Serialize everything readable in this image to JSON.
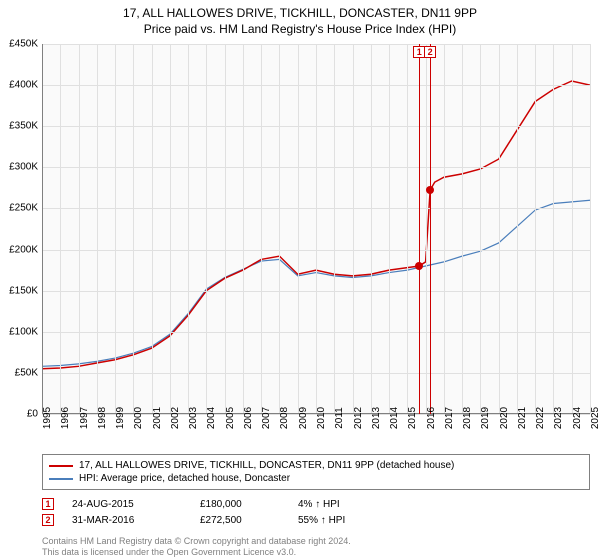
{
  "title": {
    "line1": "17, ALL HALLOWES DRIVE, TICKHILL, DONCASTER, DN11 9PP",
    "line2": "Price paid vs. HM Land Registry's House Price Index (HPI)"
  },
  "chart": {
    "type": "line",
    "background_color": "#fafafa",
    "grid_color": "#e0e0e0",
    "axis_color": "#808080",
    "title_fontsize": 12,
    "tick_fontsize": 10,
    "ylim": [
      0,
      450000
    ],
    "ytick_step": 50000,
    "yticks": [
      "£0",
      "£50K",
      "£100K",
      "£150K",
      "£200K",
      "£250K",
      "£300K",
      "£350K",
      "£400K",
      "£450K"
    ],
    "xlim": [
      1995,
      2025
    ],
    "xticks": [
      "1995",
      "1996",
      "1997",
      "1998",
      "1999",
      "2000",
      "2001",
      "2002",
      "2003",
      "2004",
      "2005",
      "2006",
      "2007",
      "2008",
      "2009",
      "2010",
      "2011",
      "2012",
      "2013",
      "2014",
      "2015",
      "2016",
      "2017",
      "2018",
      "2019",
      "2020",
      "2021",
      "2022",
      "2023",
      "2024",
      "2025"
    ],
    "series": [
      {
        "name": "property",
        "label": "17, ALL HALLOWES DRIVE, TICKHILL, DONCASTER, DN11 9PP (detached house)",
        "color": "#cc0000",
        "line_width": 1.5,
        "data": [
          [
            1995,
            55000
          ],
          [
            1996,
            56000
          ],
          [
            1997,
            58000
          ],
          [
            1998,
            62000
          ],
          [
            1999,
            66000
          ],
          [
            2000,
            72000
          ],
          [
            2001,
            80000
          ],
          [
            2002,
            95000
          ],
          [
            2003,
            120000
          ],
          [
            2004,
            150000
          ],
          [
            2005,
            165000
          ],
          [
            2006,
            175000
          ],
          [
            2007,
            188000
          ],
          [
            2008,
            192000
          ],
          [
            2009,
            170000
          ],
          [
            2010,
            175000
          ],
          [
            2011,
            170000
          ],
          [
            2012,
            168000
          ],
          [
            2013,
            170000
          ],
          [
            2014,
            175000
          ],
          [
            2015,
            178000
          ],
          [
            2015.65,
            180000
          ],
          [
            2016.0,
            185000
          ],
          [
            2016.25,
            272500
          ],
          [
            2016.5,
            282000
          ],
          [
            2017,
            288000
          ],
          [
            2018,
            292000
          ],
          [
            2019,
            298000
          ],
          [
            2020,
            310000
          ],
          [
            2021,
            345000
          ],
          [
            2022,
            380000
          ],
          [
            2023,
            395000
          ],
          [
            2024,
            405000
          ],
          [
            2025,
            400000
          ]
        ]
      },
      {
        "name": "hpi",
        "label": "HPI: Average price, detached house, Doncaster",
        "color": "#4a7ebb",
        "line_width": 1.2,
        "data": [
          [
            1995,
            58000
          ],
          [
            1996,
            59000
          ],
          [
            1997,
            61000
          ],
          [
            1998,
            64000
          ],
          [
            1999,
            68000
          ],
          [
            2000,
            74000
          ],
          [
            2001,
            82000
          ],
          [
            2002,
            97000
          ],
          [
            2003,
            122000
          ],
          [
            2004,
            152000
          ],
          [
            2005,
            166000
          ],
          [
            2006,
            176000
          ],
          [
            2007,
            186000
          ],
          [
            2008,
            188000
          ],
          [
            2009,
            168000
          ],
          [
            2010,
            172000
          ],
          [
            2011,
            168000
          ],
          [
            2012,
            166000
          ],
          [
            2013,
            168000
          ],
          [
            2014,
            172000
          ],
          [
            2015,
            175000
          ],
          [
            2016,
            180000
          ],
          [
            2017,
            185000
          ],
          [
            2018,
            192000
          ],
          [
            2019,
            198000
          ],
          [
            2020,
            208000
          ],
          [
            2021,
            228000
          ],
          [
            2022,
            248000
          ],
          [
            2023,
            256000
          ],
          [
            2024,
            258000
          ],
          [
            2025,
            260000
          ]
        ]
      }
    ],
    "markers": [
      {
        "n": "1",
        "x": 2015.65,
        "y": 180000,
        "color": "#cc0000"
      },
      {
        "n": "2",
        "x": 2016.25,
        "y": 272500,
        "color": "#cc0000"
      }
    ],
    "marker_vlines": [
      {
        "x": 2015.65,
        "color": "#cc0000"
      },
      {
        "x": 2016.25,
        "color": "#cc0000"
      }
    ]
  },
  "legend": {
    "border_color": "#808080",
    "fontsize": 10
  },
  "sales": [
    {
      "n": "1",
      "date": "24-AUG-2015",
      "price": "£180,000",
      "pct": "4% ↑ HPI"
    },
    {
      "n": "2",
      "date": "31-MAR-2016",
      "price": "£272,500",
      "pct": "55% ↑ HPI"
    }
  ],
  "footer": {
    "line1": "Contains HM Land Registry data © Crown copyright and database right 2024.",
    "line2": "This data is licensed under the Open Government Licence v3.0."
  }
}
